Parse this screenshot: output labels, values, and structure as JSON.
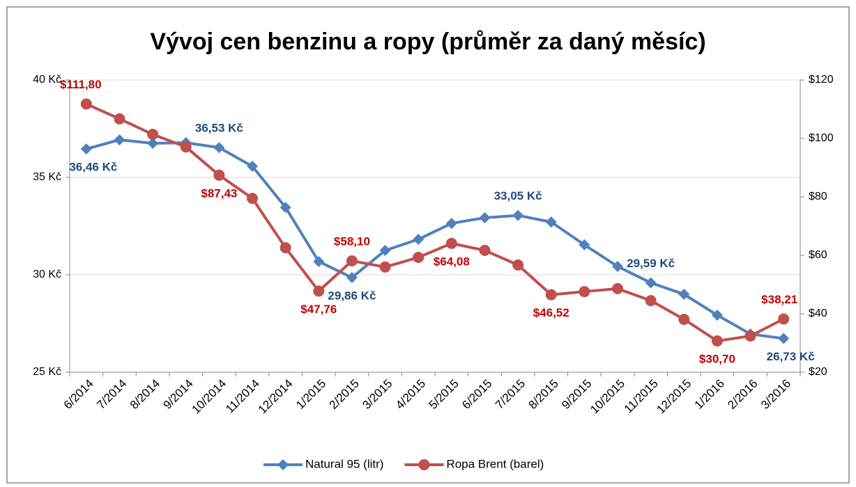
{
  "chart_data": {
    "type": "line",
    "title": "Vývoj cen benzinu a ropy (průměr za daný měsíc)",
    "categories": [
      "6/2014",
      "7/2014",
      "8/2014",
      "9/2014",
      "10/2014",
      "11/2014",
      "12/2014",
      "1/2015",
      "2/2015",
      "3/2015",
      "4/2015",
      "5/2015",
      "6/2015",
      "7/2015",
      "8/2015",
      "9/2015",
      "10/2015",
      "11/2015",
      "12/2015",
      "1/2016",
      "2/2016",
      "3/2016"
    ],
    "series": [
      {
        "name": "Natural 95 (litr)",
        "color": "#4f81bd",
        "label_color": "#1f497d",
        "marker": "diamond",
        "axis": "y",
        "values": [
          36.46,
          36.93,
          36.75,
          36.78,
          36.53,
          35.57,
          33.46,
          30.68,
          29.86,
          31.25,
          31.82,
          32.64,
          32.93,
          33.05,
          32.71,
          31.54,
          30.43,
          29.59,
          29.0,
          27.93,
          26.96,
          26.73
        ],
        "value_labels": [
          "36,46 Kč",
          null,
          null,
          null,
          "36,53 Kč",
          null,
          null,
          null,
          "29,86 Kč",
          null,
          null,
          null,
          null,
          "33,05 Kč",
          null,
          null,
          null,
          "29,59 Kč",
          null,
          null,
          null,
          "26,73 Kč"
        ]
      },
      {
        "name": "Ropa Brent (barel)",
        "color": "#c0504d",
        "label_color": "#c00000",
        "marker": "circle",
        "axis": "y2",
        "values": [
          111.8,
          106.7,
          101.4,
          97.1,
          87.43,
          79.5,
          62.6,
          47.76,
          58.1,
          56.0,
          59.3,
          64.08,
          61.7,
          56.7,
          46.52,
          47.6,
          48.6,
          44.5,
          38.1,
          30.7,
          32.4,
          38.21
        ],
        "value_labels": [
          "$111,80",
          null,
          null,
          null,
          "$87,43",
          null,
          null,
          "$47,76",
          "$58,10",
          null,
          null,
          "$64,08",
          null,
          null,
          "$46,52",
          null,
          null,
          null,
          null,
          "$30,70",
          null,
          "$38,21"
        ]
      }
    ],
    "ylim": [
      25,
      40
    ],
    "yticks": [
      {
        "value": 25,
        "label": "25 Kč"
      },
      {
        "value": 30,
        "label": "30 Kč"
      },
      {
        "value": 35,
        "label": "35 Kč"
      },
      {
        "value": 40,
        "label": "40 Kč"
      }
    ],
    "y2lim": [
      20,
      120
    ],
    "y2ticks": [
      {
        "value": 20,
        "label": "$20"
      },
      {
        "value": 40,
        "label": "$40"
      },
      {
        "value": 60,
        "label": "$60"
      },
      {
        "value": 80,
        "label": "$80"
      },
      {
        "value": 100,
        "label": "$100"
      },
      {
        "value": 120,
        "label": "$120"
      }
    ],
    "grid": true,
    "legend": "bottom"
  }
}
